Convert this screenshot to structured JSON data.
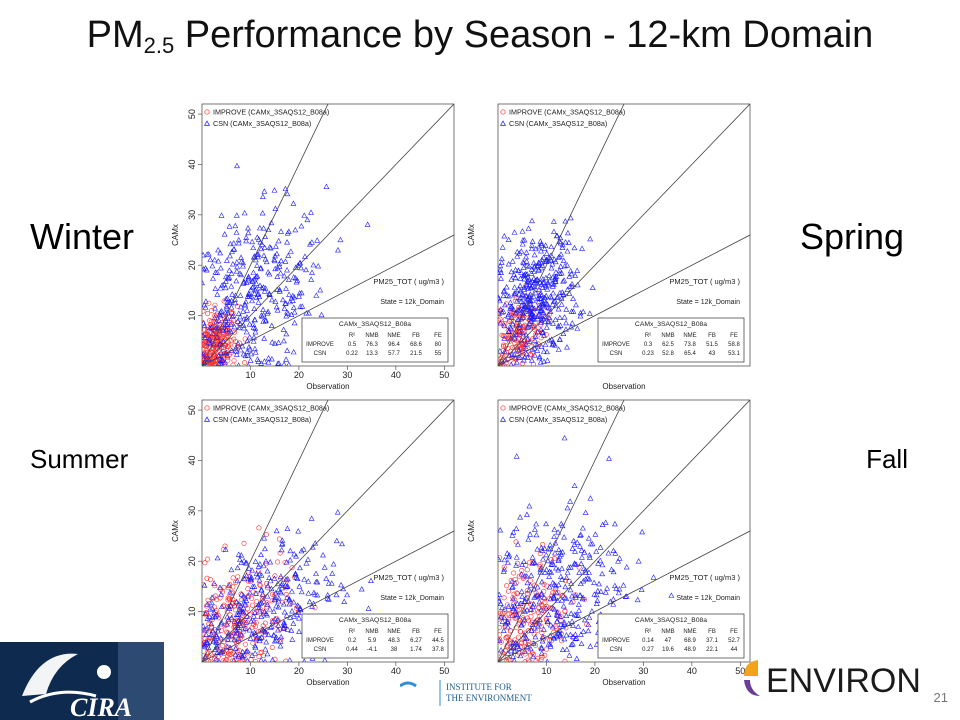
{
  "slide": {
    "title_prefix": "PM",
    "title_sub": "2.5",
    "title_rest": " Performance by Season - 12-km Domain",
    "page_number": "21"
  },
  "seasons": {
    "winter": "Winter",
    "spring": "Spring",
    "summer": "Summer",
    "fall": "Fall"
  },
  "logos": {
    "cira": "CIRA",
    "ioe_line1": "INSTITUTE FOR",
    "ioe_line2": "THE ENVIRONMENT",
    "environ": "ENVIRON"
  },
  "colors": {
    "improve": "#ff2a2a",
    "csn": "#1a1aff",
    "lines": "#444444"
  },
  "chart_data": [
    {
      "type": "scatter",
      "season": "Winter",
      "xlabel": "Observation",
      "ylabel": "CAMx",
      "xlim": [
        0,
        52
      ],
      "ylim": [
        0,
        52
      ],
      "xticks": [
        "10",
        "20",
        "30",
        "40",
        "50"
      ],
      "yticks": [
        "10",
        "20",
        "30",
        "40",
        "50"
      ],
      "legend": [
        "IMPROVE (CAMx_3SAQS12_B08a)",
        "CSN (CAMx_3SAQS12_B08a)"
      ],
      "species_label": "PM25_TOT  ( ug/m3 )",
      "state_label": "State = 12k_Domain",
      "stats_table": {
        "title": "CAMx_3SAQS12_B08a",
        "headers": [
          "",
          "R²",
          "NMB",
          "NME",
          "FB",
          "FE"
        ],
        "rows": [
          [
            "IMPROVE",
            "0.5",
            "76.3",
            "96.4",
            "68.6",
            "80"
          ],
          [
            "CSN",
            "0.22",
            "13.3",
            "57.7",
            "21.5",
            "55"
          ]
        ]
      },
      "reference_slopes": [
        2,
        1,
        0.5
      ],
      "series": [
        {
          "name": "IMPROVE",
          "marker": "circle",
          "cluster": {
            "x_mean": 2.8,
            "x_sd": 2.2,
            "y_mean": 4.2,
            "y_sd": 3.5,
            "count": 240
          }
        },
        {
          "name": "CSN",
          "marker": "triangle",
          "cluster": {
            "x_mean": 10.5,
            "x_sd": 7.5,
            "y_mean": 13,
            "y_sd": 8.5,
            "count": 380
          }
        }
      ]
    },
    {
      "type": "scatter",
      "season": "Spring",
      "xlabel": "Observation",
      "ylabel": "CAMx",
      "xlim": [
        0,
        52
      ],
      "ylim": [
        0,
        52
      ],
      "xticks": [],
      "yticks": [],
      "legend": [
        "IMPROVE (CAMx_3SAQS12_B08a)",
        "CSN (CAMx_3SAQS12_B08a)"
      ],
      "species_label": "PM25_TOT  ( ug/m3 )",
      "state_label": "State = 12k_Domain",
      "stats_table": {
        "title": "CAMx_3SAQS12_B08a",
        "headers": [
          "",
          "R²",
          "NMB",
          "NME",
          "FB",
          "FE"
        ],
        "rows": [
          [
            "IMPROVE",
            "0.3",
            "62.5",
            "73.8",
            "51.5",
            "58.8"
          ],
          [
            "CSN",
            "0.23",
            "52.8",
            "65.4",
            "43",
            "53.1"
          ]
        ]
      },
      "reference_slopes": [
        2,
        1,
        0.5
      ],
      "series": [
        {
          "name": "IMPROVE",
          "marker": "circle",
          "cluster": {
            "x_mean": 4,
            "x_sd": 2.8,
            "y_mean": 6.5,
            "y_sd": 3.8,
            "count": 160
          }
        },
        {
          "name": "CSN",
          "marker": "triangle",
          "cluster": {
            "x_mean": 8,
            "x_sd": 4.2,
            "y_mean": 13.5,
            "y_sd": 6.5,
            "count": 420
          }
        }
      ]
    },
    {
      "type": "scatter",
      "season": "Summer",
      "xlabel": "Observation",
      "ylabel": "CAMx",
      "xlim": [
        0,
        52
      ],
      "ylim": [
        0,
        52
      ],
      "xticks": [
        "10",
        "20",
        "30",
        "40",
        "50"
      ],
      "yticks": [
        "10",
        "20",
        "30",
        "40",
        "50"
      ],
      "legend": [
        "IMPROVE (CAMx_3SAQS12_B08a)",
        "CSN (CAMx_3SAQS12_B08a)"
      ],
      "species_label": "PM25_TOT  ( ug/m3 )",
      "state_label": "State = 12k_Domain",
      "stats_table": {
        "title": "CAMx_3SAQS12_B08a",
        "headers": [
          "",
          "R²",
          "NMB",
          "NME",
          "FB",
          "FE"
        ],
        "rows": [
          [
            "IMPROVE",
            "0.2",
            "5.9",
            "48.3",
            "6.27",
            "44.5"
          ],
          [
            "CSN",
            "0.44",
            "-4.1",
            "38",
            "1.74",
            "37.8"
          ]
        ]
      },
      "reference_slopes": [
        2,
        1,
        0.5
      ],
      "series": [
        {
          "name": "IMPROVE",
          "marker": "circle",
          "cluster": {
            "x_mean": 7,
            "x_sd": 5.5,
            "y_mean": 7.5,
            "y_sd": 6,
            "count": 260
          }
        },
        {
          "name": "CSN",
          "marker": "triangle",
          "cluster": {
            "x_mean": 12,
            "x_sd": 8,
            "y_mean": 10,
            "y_sd": 7,
            "count": 340
          }
        }
      ]
    },
    {
      "type": "scatter",
      "season": "Fall",
      "xlabel": "Observation",
      "ylabel": "CAMx",
      "xlim": [
        0,
        52
      ],
      "ylim": [
        0,
        52
      ],
      "xticks": [
        "10",
        "20",
        "30",
        "40",
        "50"
      ],
      "yticks": [],
      "legend": [
        "IMPROVE (CAMx_3SAQS12_B08a)",
        "CSN (CAMx_3SAQS12_B08a)"
      ],
      "species_label": "PM25_TOT  ( ug/m3 )",
      "state_label": "State = 12k_Domain",
      "stats_table": {
        "title": "CAMx_3SAQS12_B08a",
        "headers": [
          "",
          "R²",
          "NMB",
          "NME",
          "FB",
          "FE"
        ],
        "rows": [
          [
            "IMPROVE",
            "0.14",
            "47",
            "68.9",
            "37.1",
            "52.7"
          ],
          [
            "CSN",
            "0.27",
            "19.6",
            "48.9",
            "22.1",
            "44"
          ]
        ]
      },
      "reference_slopes": [
        2,
        1,
        0.5
      ],
      "series": [
        {
          "name": "IMPROVE",
          "marker": "circle",
          "cluster": {
            "x_mean": 6,
            "x_sd": 4.5,
            "y_mean": 8.5,
            "y_sd": 6.5,
            "count": 200
          }
        },
        {
          "name": "CSN",
          "marker": "triangle",
          "cluster": {
            "x_mean": 11,
            "x_sd": 7.5,
            "y_mean": 13,
            "y_sd": 8.5,
            "count": 360
          }
        }
      ]
    }
  ]
}
